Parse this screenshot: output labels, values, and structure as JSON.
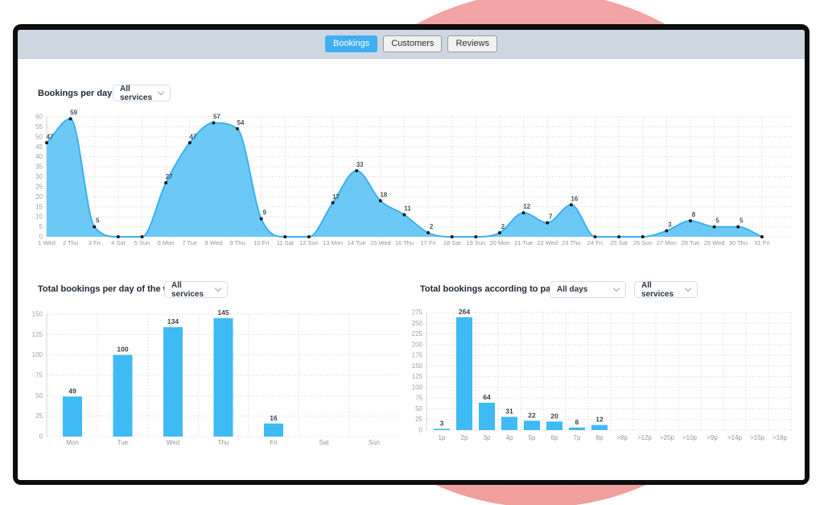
{
  "window": {
    "tabs": [
      {
        "label": "Bookings",
        "active": true
      },
      {
        "label": "Customers",
        "active": false
      },
      {
        "label": "Reviews",
        "active": false
      }
    ]
  },
  "colors": {
    "accent_blue": "#41AFF2",
    "bar_blue": "#3EBAF4",
    "area_fill": "#6CC9F6",
    "area_stroke": "#3BB1F0",
    "tabbar_bg": "#CDD6E1",
    "pink_circle": "#F2A2A2",
    "frame_black": "#0D0D0D"
  },
  "chart_data": [
    {
      "type": "area",
      "title": "Bookings per day",
      "filter": "All services",
      "categories": [
        "1 Wed",
        "2 Thu",
        "3 Fri",
        "4 Sat",
        "5 Sun",
        "6 Mon",
        "7 Tue",
        "8 Wed",
        "9 Thu",
        "10 Fri",
        "11 Sat",
        "12 Sun",
        "13 Mon",
        "14 Tue",
        "15 Wed",
        "16 Thu",
        "17 Fri",
        "18 Sat",
        "19 Sun",
        "20 Mon",
        "21 Tue",
        "22 Wed",
        "23 Thu",
        "24 Fri",
        "25 Sat",
        "26 Sun",
        "27 Mon",
        "28 Tue",
        "29 Wed",
        "30 Thu",
        "31 Fri"
      ],
      "values": [
        47,
        59,
        5,
        0,
        0,
        27,
        47,
        57,
        54,
        9,
        0,
        0,
        17,
        33,
        18,
        11,
        2,
        0,
        0,
        2,
        12,
        7,
        16,
        0,
        0,
        0,
        3,
        8,
        5,
        5,
        0
      ],
      "ylim": [
        0,
        60
      ],
      "ytick_step": 5,
      "grid": "dotted",
      "legend": "none"
    },
    {
      "type": "bar",
      "title": "Total bookings per day of the week",
      "filter": "All services",
      "categories": [
        "Mon",
        "Tue",
        "Wed",
        "Thu",
        "Fri",
        "Sat",
        "Sun"
      ],
      "values": [
        49,
        100,
        134,
        145,
        16,
        0,
        0
      ],
      "ylim": [
        0,
        150
      ],
      "ytick_step": 25,
      "grid": "dotted",
      "legend": "none"
    },
    {
      "type": "bar",
      "title": "Total bookings according to party size",
      "filters": [
        "All days",
        "All services"
      ],
      "categories": [
        "1p",
        "2p",
        "3p",
        "4p",
        "5p",
        "6p",
        "7p",
        "8p",
        ">8p",
        ">12p",
        ">20p",
        ">10p",
        ">9p",
        ">14p",
        ">15p",
        ">18p"
      ],
      "values": [
        3,
        264,
        64,
        31,
        22,
        20,
        6,
        12,
        0,
        0,
        0,
        0,
        0,
        0,
        0,
        0
      ],
      "ylim": [
        0,
        275
      ],
      "ytick_step": 25,
      "grid": "dotted",
      "legend": "none"
    }
  ]
}
